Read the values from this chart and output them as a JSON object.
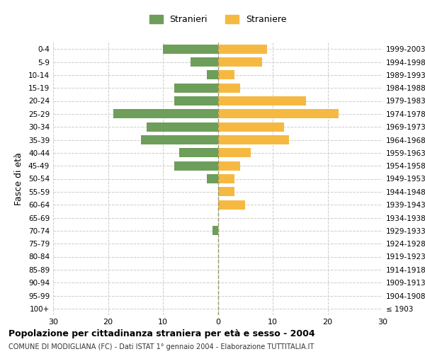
{
  "age_groups": [
    "100+",
    "95-99",
    "90-94",
    "85-89",
    "80-84",
    "75-79",
    "70-74",
    "65-69",
    "60-64",
    "55-59",
    "50-54",
    "45-49",
    "40-44",
    "35-39",
    "30-34",
    "25-29",
    "20-24",
    "15-19",
    "10-14",
    "5-9",
    "0-4"
  ],
  "birth_years": [
    "≤ 1903",
    "1904-1908",
    "1909-1913",
    "1914-1918",
    "1919-1923",
    "1924-1928",
    "1929-1933",
    "1934-1938",
    "1939-1943",
    "1944-1948",
    "1949-1953",
    "1954-1958",
    "1959-1963",
    "1964-1968",
    "1969-1973",
    "1974-1978",
    "1979-1983",
    "1984-1988",
    "1989-1993",
    "1994-1998",
    "1999-2003"
  ],
  "males": [
    0,
    0,
    0,
    0,
    0,
    0,
    1,
    0,
    0,
    0,
    2,
    8,
    7,
    14,
    13,
    19,
    8,
    8,
    2,
    5,
    10
  ],
  "females": [
    0,
    0,
    0,
    0,
    0,
    0,
    0,
    0,
    5,
    3,
    3,
    4,
    6,
    13,
    12,
    22,
    16,
    4,
    3,
    8,
    9
  ],
  "male_color": "#6d9e5a",
  "female_color": "#f5b942",
  "grid_color": "#cccccc",
  "center_line_color": "#999966",
  "xlim": 30,
  "title": "Popolazione per cittadinanza straniera per età e sesso - 2004",
  "subtitle": "COMUNE DI MODIGLIANA (FC) - Dati ISTAT 1° gennaio 2004 - Elaborazione TUTTITALIA.IT",
  "ylabel_left": "Fasce di età",
  "legend_male": "Stranieri",
  "legend_female": "Straniere",
  "background_color": "#ffffff"
}
